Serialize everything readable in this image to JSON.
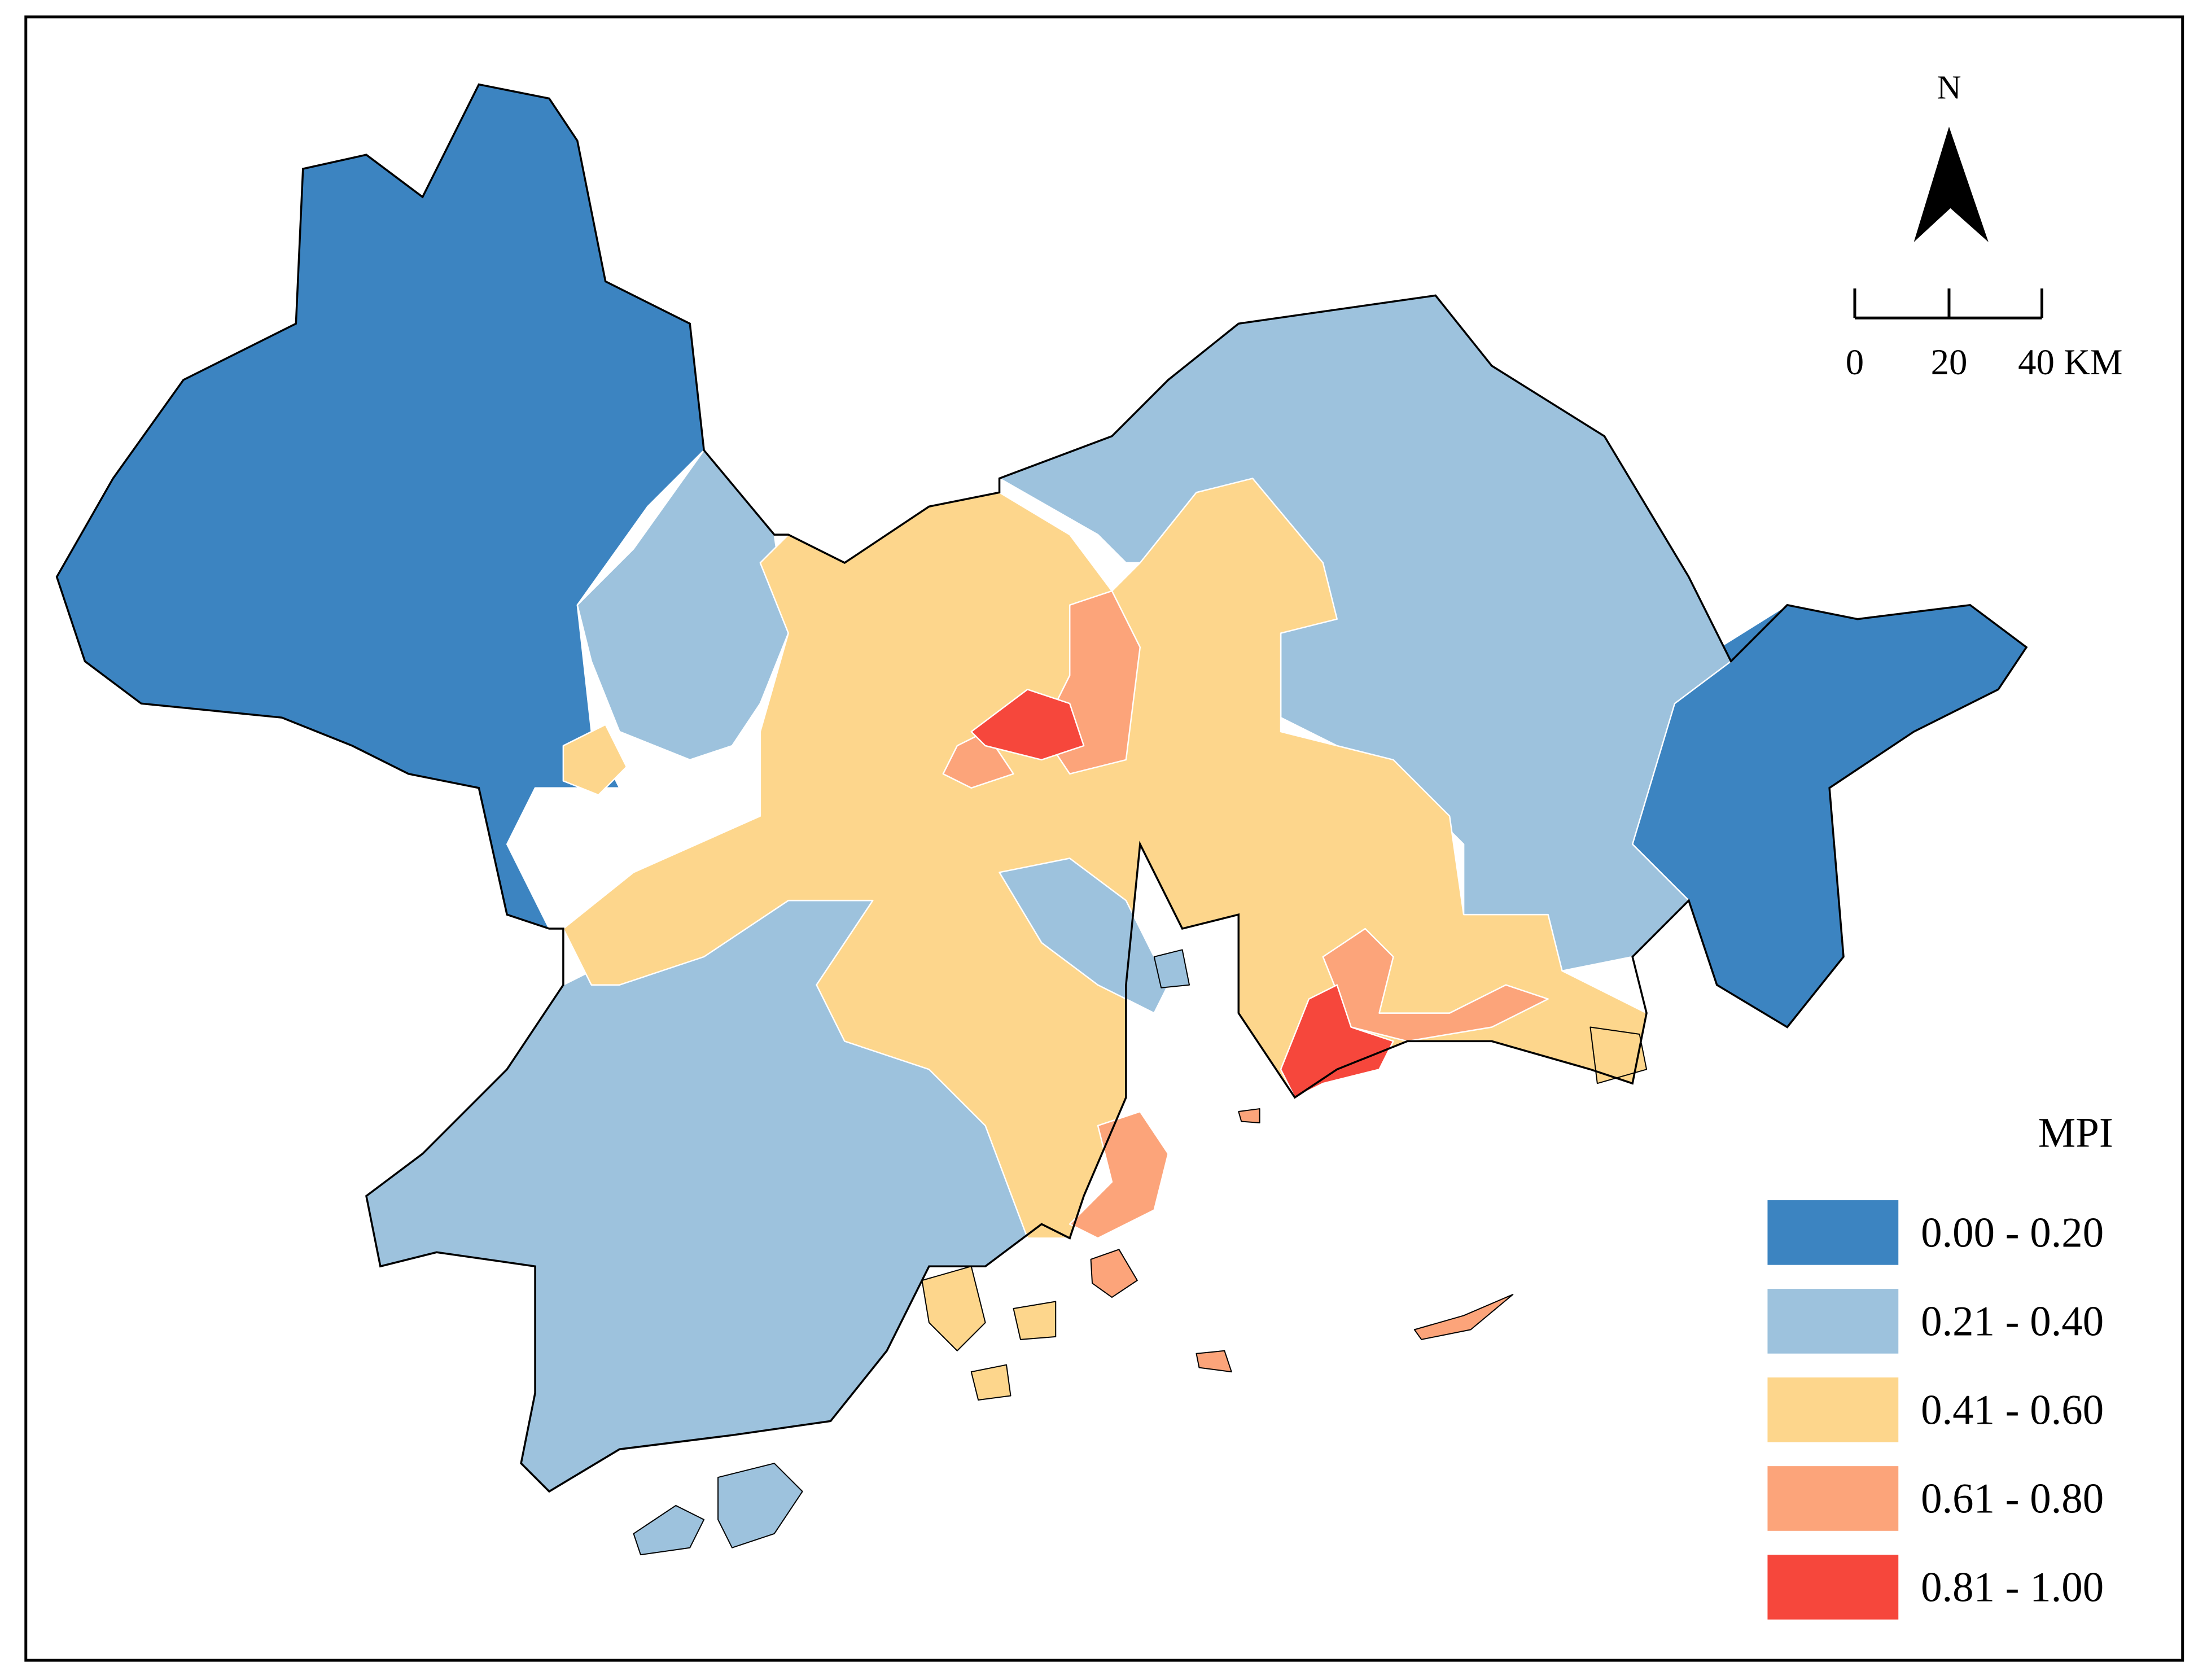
{
  "north_label": "N",
  "scale_bar": {
    "labels": [
      "0",
      "20",
      "40 KM"
    ]
  },
  "legend": {
    "title": "MPI",
    "items": [
      {
        "label": "0.00 - 0.20",
        "color": "#3c84c1"
      },
      {
        "label": "0.21 - 0.40",
        "color": "#9dc2dd"
      },
      {
        "label": "0.41 - 0.60",
        "color": "#fdd68c"
      },
      {
        "label": "0.61 - 0.80",
        "color": "#fca47a"
      },
      {
        "label": "0.81 - 1.00",
        "color": "#f6473c"
      }
    ]
  }
}
